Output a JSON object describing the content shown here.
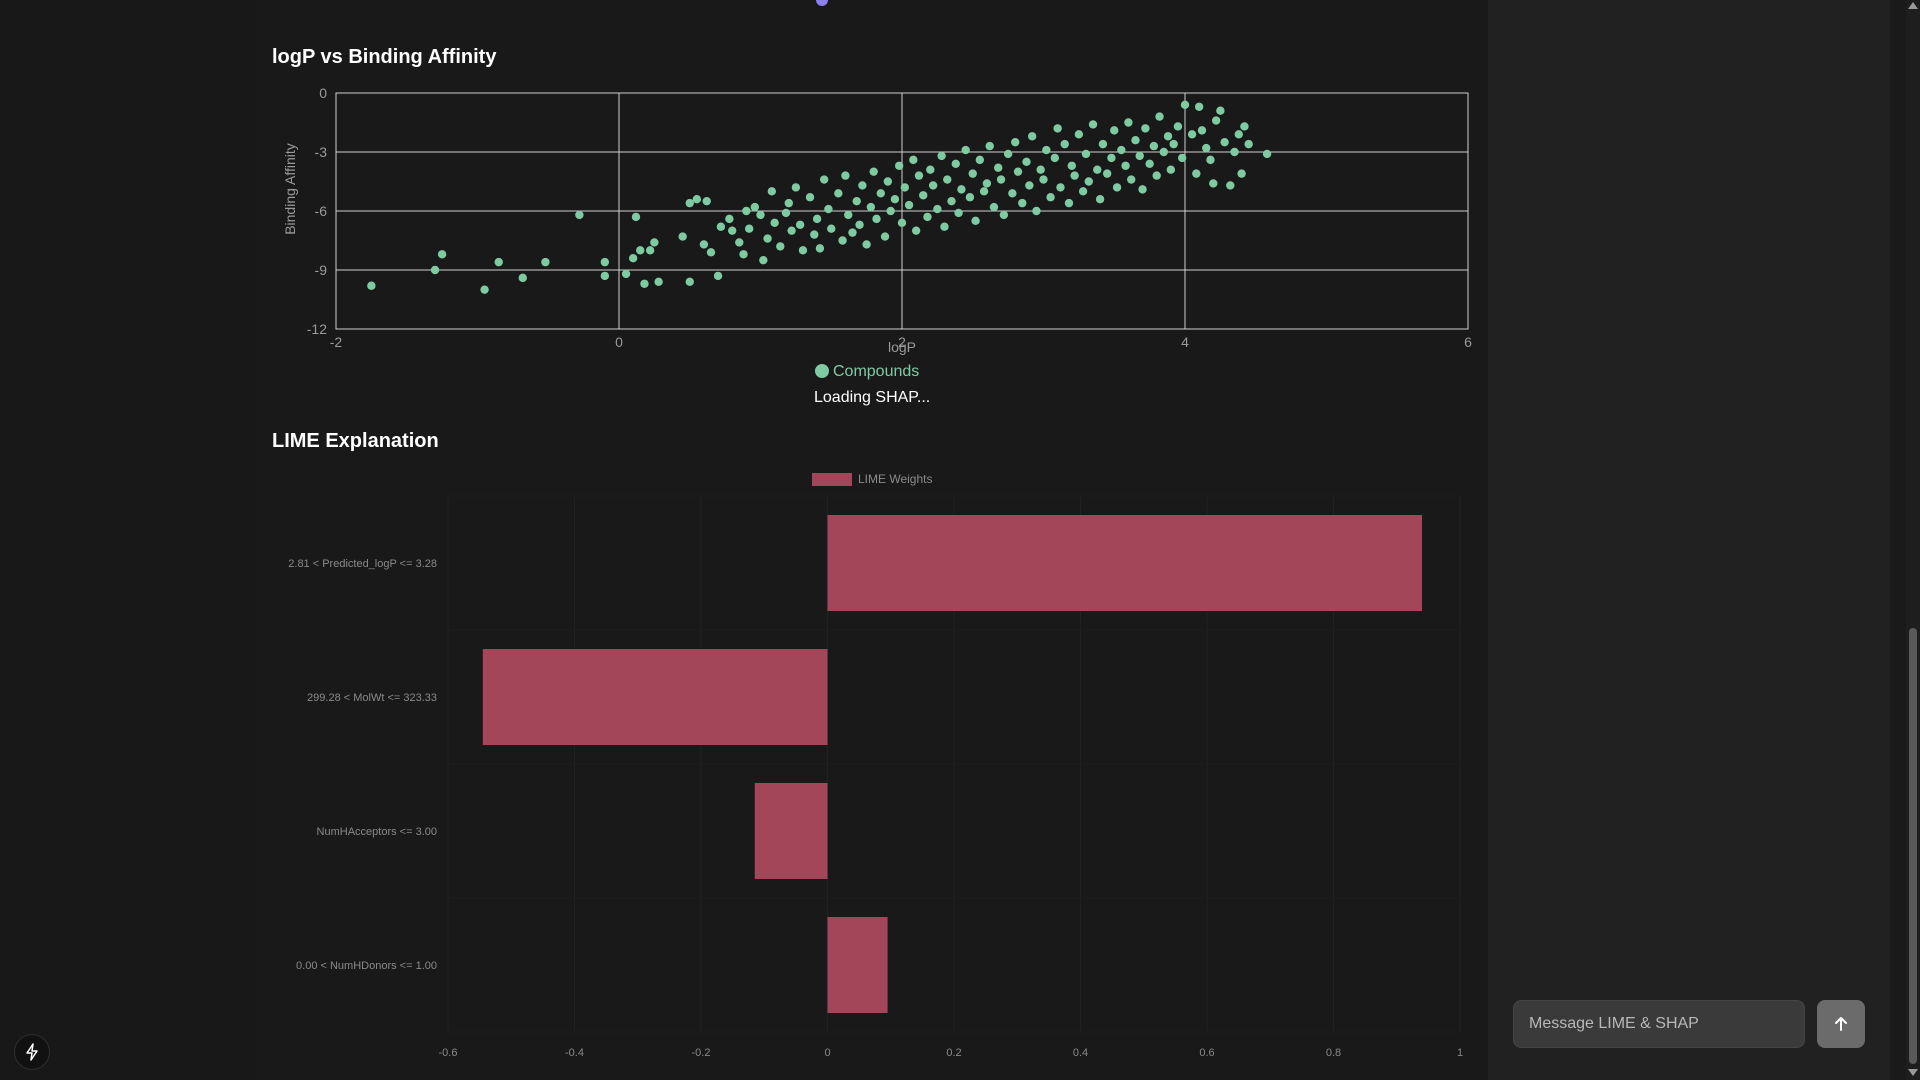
{
  "scatter_section": {
    "title": "logP vs Binding Affinity",
    "loading_text": "Loading SHAP..."
  },
  "lime_section": {
    "title": "LIME Explanation"
  },
  "chat": {
    "input_placeholder": "Message LIME & SHAP"
  },
  "colors": {
    "scatter_point": "#7ecba1",
    "lime_bar": "#a44659",
    "background": "#191919",
    "side_panel": "#212121"
  },
  "icons": {
    "send": "arrow-up-icon",
    "app": "bolt-icon"
  },
  "chart_data": [
    {
      "type": "scatter",
      "title": "logP vs Binding Affinity",
      "xlabel": "logP",
      "ylabel": "Binding Affinity",
      "xlim": [
        -2,
        6
      ],
      "ylim": [
        -12,
        0
      ],
      "xticks": [
        -2,
        0,
        2,
        4,
        6
      ],
      "yticks": [
        0,
        -3,
        -6,
        -9,
        -12
      ],
      "grid": true,
      "legend": "bottom",
      "series": [
        {
          "name": "Compounds",
          "color": "#7ecba1",
          "points": [
            [
              -1.75,
              -9.8
            ],
            [
              -1.3,
              -9.0
            ],
            [
              -1.25,
              -8.2
            ],
            [
              -0.95,
              -10.0
            ],
            [
              -0.85,
              -8.6
            ],
            [
              -0.68,
              -9.4
            ],
            [
              -0.52,
              -8.6
            ],
            [
              -0.28,
              -6.2
            ],
            [
              -0.1,
              -8.6
            ],
            [
              -0.1,
              -9.3
            ],
            [
              0.05,
              -9.2
            ],
            [
              0.1,
              -8.4
            ],
            [
              0.12,
              -6.3
            ],
            [
              0.15,
              -8.0
            ],
            [
              0.18,
              -9.7
            ],
            [
              0.22,
              -8.0
            ],
            [
              0.25,
              -7.6
            ],
            [
              0.28,
              -9.6
            ],
            [
              0.45,
              -7.3
            ],
            [
              0.5,
              -5.6
            ],
            [
              0.5,
              -9.6
            ],
            [
              0.55,
              -5.4
            ],
            [
              0.6,
              -7.7
            ],
            [
              0.62,
              -5.5
            ],
            [
              0.65,
              -8.1
            ],
            [
              0.7,
              -9.3
            ],
            [
              0.72,
              -6.8
            ],
            [
              0.78,
              -6.4
            ],
            [
              0.8,
              -7.0
            ],
            [
              0.85,
              -7.6
            ],
            [
              0.88,
              -8.2
            ],
            [
              0.9,
              -6.0
            ],
            [
              0.92,
              -6.9
            ],
            [
              0.96,
              -5.8
            ],
            [
              1.0,
              -6.2
            ],
            [
              1.02,
              -8.5
            ],
            [
              1.05,
              -7.4
            ],
            [
              1.08,
              -5.0
            ],
            [
              1.1,
              -6.6
            ],
            [
              1.14,
              -7.8
            ],
            [
              1.18,
              -6.1
            ],
            [
              1.2,
              -5.6
            ],
            [
              1.22,
              -7.0
            ],
            [
              1.25,
              -4.8
            ],
            [
              1.28,
              -6.7
            ],
            [
              1.3,
              -8.0
            ],
            [
              1.35,
              -5.3
            ],
            [
              1.38,
              -7.2
            ],
            [
              1.4,
              -6.4
            ],
            [
              1.42,
              -7.9
            ],
            [
              1.45,
              -4.4
            ],
            [
              1.48,
              -5.9
            ],
            [
              1.5,
              -6.9
            ],
            [
              1.55,
              -5.1
            ],
            [
              1.58,
              -7.5
            ],
            [
              1.6,
              -4.2
            ],
            [
              1.62,
              -6.2
            ],
            [
              1.65,
              -7.1
            ],
            [
              1.68,
              -5.5
            ],
            [
              1.7,
              -6.7
            ],
            [
              1.72,
              -4.7
            ],
            [
              1.75,
              -7.7
            ],
            [
              1.78,
              -5.8
            ],
            [
              1.8,
              -4.0
            ],
            [
              1.82,
              -6.4
            ],
            [
              1.85,
              -5.1
            ],
            [
              1.88,
              -7.3
            ],
            [
              1.9,
              -4.5
            ],
            [
              1.92,
              -6.0
            ],
            [
              1.95,
              -5.4
            ],
            [
              1.98,
              -3.7
            ],
            [
              2.0,
              -6.6
            ],
            [
              2.02,
              -4.8
            ],
            [
              2.05,
              -5.7
            ],
            [
              2.08,
              -3.4
            ],
            [
              2.1,
              -7.0
            ],
            [
              2.12,
              -4.2
            ],
            [
              2.15,
              -5.2
            ],
            [
              2.18,
              -6.3
            ],
            [
              2.2,
              -3.9
            ],
            [
              2.22,
              -4.7
            ],
            [
              2.25,
              -5.9
            ],
            [
              2.28,
              -3.2
            ],
            [
              2.3,
              -6.8
            ],
            [
              2.32,
              -4.4
            ],
            [
              2.35,
              -5.5
            ],
            [
              2.38,
              -3.6
            ],
            [
              2.4,
              -6.1
            ],
            [
              2.42,
              -4.9
            ],
            [
              2.45,
              -2.9
            ],
            [
              2.48,
              -5.3
            ],
            [
              2.5,
              -4.1
            ],
            [
              2.52,
              -6.5
            ],
            [
              2.55,
              -3.4
            ],
            [
              2.58,
              -5.0
            ],
            [
              2.6,
              -4.6
            ],
            [
              2.62,
              -2.7
            ],
            [
              2.65,
              -5.8
            ],
            [
              2.68,
              -3.8
            ],
            [
              2.7,
              -4.4
            ],
            [
              2.72,
              -6.2
            ],
            [
              2.75,
              -3.1
            ],
            [
              2.78,
              -5.1
            ],
            [
              2.8,
              -2.5
            ],
            [
              2.82,
              -4.0
            ],
            [
              2.85,
              -5.6
            ],
            [
              2.88,
              -3.5
            ],
            [
              2.9,
              -4.7
            ],
            [
              2.92,
              -2.2
            ],
            [
              2.95,
              -6.0
            ],
            [
              2.98,
              -3.9
            ],
            [
              3.0,
              -4.4
            ],
            [
              3.02,
              -2.9
            ],
            [
              3.05,
              -5.3
            ],
            [
              3.08,
              -3.3
            ],
            [
              3.1,
              -1.8
            ],
            [
              3.12,
              -4.8
            ],
            [
              3.15,
              -2.6
            ],
            [
              3.18,
              -5.6
            ],
            [
              3.2,
              -3.7
            ],
            [
              3.22,
              -4.2
            ],
            [
              3.25,
              -2.1
            ],
            [
              3.28,
              -5.0
            ],
            [
              3.3,
              -3.1
            ],
            [
              3.32,
              -4.5
            ],
            [
              3.35,
              -1.6
            ],
            [
              3.38,
              -3.9
            ],
            [
              3.4,
              -5.4
            ],
            [
              3.42,
              -2.6
            ],
            [
              3.45,
              -4.1
            ],
            [
              3.48,
              -3.3
            ],
            [
              3.5,
              -1.9
            ],
            [
              3.52,
              -4.8
            ],
            [
              3.55,
              -2.9
            ],
            [
              3.58,
              -3.7
            ],
            [
              3.6,
              -1.5
            ],
            [
              3.62,
              -4.4
            ],
            [
              3.65,
              -2.4
            ],
            [
              3.68,
              -3.2
            ],
            [
              3.7,
              -4.9
            ],
            [
              3.72,
              -1.8
            ],
            [
              3.75,
              -3.6
            ],
            [
              3.78,
              -2.7
            ],
            [
              3.8,
              -4.2
            ],
            [
              3.82,
              -1.2
            ],
            [
              3.85,
              -3.0
            ],
            [
              3.88,
              -2.2
            ],
            [
              3.9,
              -3.9
            ],
            [
              3.92,
              -2.6
            ],
            [
              3.95,
              -1.7
            ],
            [
              3.98,
              -3.3
            ],
            [
              4.0,
              -0.6
            ],
            [
              4.05,
              -2.1
            ],
            [
              4.08,
              -4.1
            ],
            [
              4.1,
              -0.7
            ],
            [
              4.12,
              -1.9
            ],
            [
              4.15,
              -2.8
            ],
            [
              4.18,
              -3.4
            ],
            [
              4.2,
              -4.6
            ],
            [
              4.22,
              -1.4
            ],
            [
              4.25,
              -0.9
            ],
            [
              4.28,
              -2.5
            ],
            [
              4.32,
              -4.7
            ],
            [
              4.35,
              -3.0
            ],
            [
              4.38,
              -2.1
            ],
            [
              4.4,
              -4.1
            ],
            [
              4.42,
              -1.7
            ],
            [
              4.45,
              -2.6
            ],
            [
              4.58,
              -3.1
            ]
          ]
        }
      ]
    },
    {
      "type": "bar",
      "orientation": "horizontal",
      "categories": [
        "2.81 < Predicted_logP <= 3.28",
        "299.28 < MolWt <= 323.33",
        "NumHAcceptors <= 3.00",
        "0.00 < NumHDonors <= 1.00"
      ],
      "series": [
        {
          "name": "LIME Weights",
          "color": "#a44659",
          "values": [
            0.94,
            -0.545,
            -0.115,
            0.095
          ]
        }
      ],
      "xlim": [
        -0.6,
        1.0
      ],
      "xticks": [
        -0.6,
        -0.4,
        -0.2,
        0,
        0.2,
        0.4,
        0.6,
        0.8,
        1.0
      ],
      "legend": "top",
      "grid": true
    }
  ]
}
